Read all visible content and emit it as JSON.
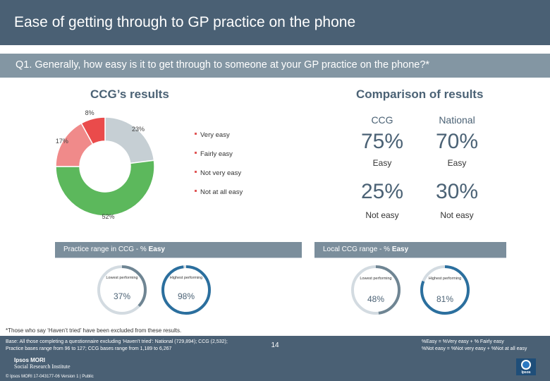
{
  "header": {
    "title": "Ease of getting through to GP practice on the phone"
  },
  "question": {
    "text": "Q1. Generally, how easy is it to get through to someone at your GP practice on the phone?*"
  },
  "ccg_results": {
    "heading": "CCG’s results"
  },
  "comparison": {
    "heading": "Comparison of results",
    "columns": [
      "CCG",
      "National"
    ],
    "easy": {
      "ccg": "75%",
      "national": "70%",
      "label": "Easy"
    },
    "not_easy": {
      "ccg": "25%",
      "national": "30%",
      "label": "Not easy"
    }
  },
  "chart_data": {
    "type": "pie",
    "categories": [
      "Very easy",
      "Fairly easy",
      "Not very easy",
      "Not at all easy"
    ],
    "values": [
      23,
      52,
      17,
      8
    ],
    "labels": [
      "23%",
      "52%",
      "17%",
      "8%"
    ],
    "colors": [
      "#c6cfd4",
      "#5cb85c",
      "#f08a8a",
      "#ea4b4b"
    ],
    "donut": true,
    "legend_placement": "right"
  },
  "practice_range": {
    "label_prefix": "Practice range in CCG - % ",
    "label_bold": "Easy",
    "lowest_label": "Lowest performing",
    "lowest_value": "37%",
    "lowest_fraction": 0.37,
    "highest_label": "Highest performing",
    "highest_value": "98%",
    "highest_fraction": 0.98
  },
  "ccg_range": {
    "label_prefix": "Local CCG range - % ",
    "label_bold": "Easy",
    "lowest_label": "Lowest performing",
    "lowest_value": "48%",
    "lowest_fraction": 0.48,
    "highest_label": "Highest performing",
    "highest_value": "81%",
    "highest_fraction": 0.81
  },
  "footnote": "*Those who say ‘Haven’t tried’ have been excluded from these results.",
  "footer": {
    "base_line1": "Base: All those completing a questionnaire excluding ‘Haven’t tried’: National (729,894); CCG (2,532);",
    "base_line2": "Practice bases range from 96 to 127; CCG bases range from 1,189 to 6,267",
    "def_line1": "%Easy = %Very easy + % Fairly easy",
    "def_line2": "%Not easy = %Not very easy + %Not at all easy",
    "page_number": "14",
    "logo_line1": "Ipsos MORI",
    "logo_line2": "Social Research Institute",
    "copyright": "© Ipsos MORI     17-043177-06 Version 1 | Public",
    "ipsos_brand": "Ipsos"
  }
}
